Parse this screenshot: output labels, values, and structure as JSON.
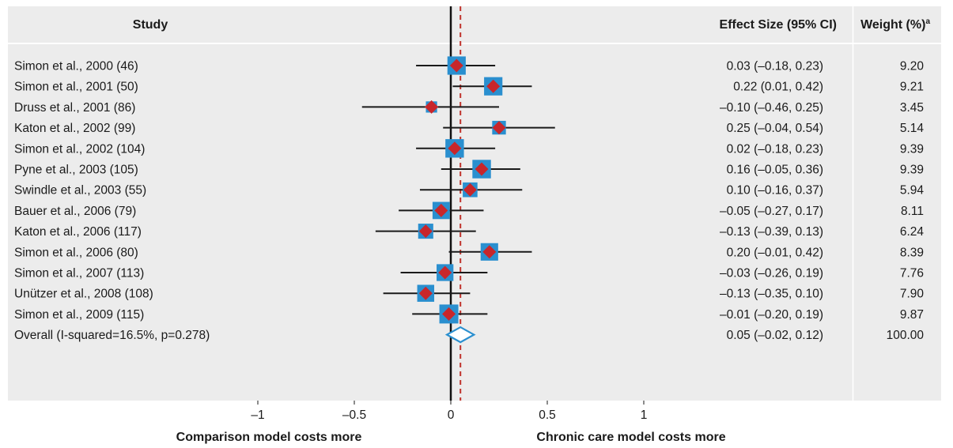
{
  "chart_data": {
    "type": "forest",
    "headers": {
      "study": "Study",
      "effect": "Effect Size (95% CI)",
      "weight": "Weight (%)",
      "weight_sup": "a"
    },
    "studies": [
      {
        "label": "Simon et al., 2000 (46)",
        "es": 0.03,
        "lo": -0.18,
        "hi": 0.23,
        "ci_text": "0.03 (–0.18, 0.23)",
        "weight": 9.2,
        "weight_text": "9.20"
      },
      {
        "label": "Simon et al., 2001 (50)",
        "es": 0.22,
        "lo": 0.01,
        "hi": 0.42,
        "ci_text": "0.22 (0.01, 0.42)",
        "weight": 9.21,
        "weight_text": "9.21"
      },
      {
        "label": "Druss et al., 2001 (86)",
        "es": -0.1,
        "lo": -0.46,
        "hi": 0.25,
        "ci_text": "–0.10 (–0.46, 0.25)",
        "weight": 3.45,
        "weight_text": "3.45"
      },
      {
        "label": "Katon et al., 2002 (99)",
        "es": 0.25,
        "lo": -0.04,
        "hi": 0.54,
        "ci_text": "0.25 (–0.04, 0.54)",
        "weight": 5.14,
        "weight_text": "5.14"
      },
      {
        "label": "Simon et al., 2002 (104)",
        "es": 0.02,
        "lo": -0.18,
        "hi": 0.23,
        "ci_text": "0.02 (–0.18, 0.23)",
        "weight": 9.39,
        "weight_text": "9.39"
      },
      {
        "label": "Pyne et al., 2003 (105)",
        "es": 0.16,
        "lo": -0.05,
        "hi": 0.36,
        "ci_text": "0.16 (–0.05, 0.36)",
        "weight": 9.39,
        "weight_text": "9.39"
      },
      {
        "label": "Swindle et al., 2003 (55)",
        "es": 0.1,
        "lo": -0.16,
        "hi": 0.37,
        "ci_text": "0.10 (–0.16, 0.37)",
        "weight": 5.94,
        "weight_text": "5.94"
      },
      {
        "label": "Bauer et al., 2006 (79)",
        "es": -0.05,
        "lo": -0.27,
        "hi": 0.17,
        "ci_text": "–0.05 (–0.27, 0.17)",
        "weight": 8.11,
        "weight_text": "8.11"
      },
      {
        "label": "Katon et al., 2006 (117)",
        "es": -0.13,
        "lo": -0.39,
        "hi": 0.13,
        "ci_text": "–0.13 (–0.39, 0.13)",
        "weight": 6.24,
        "weight_text": "6.24"
      },
      {
        "label": "Simon et al., 2006 (80)",
        "es": 0.2,
        "lo": -0.01,
        "hi": 0.42,
        "ci_text": "0.20 (–0.01, 0.42)",
        "weight": 8.39,
        "weight_text": "8.39"
      },
      {
        "label": "Simon et al., 2007 (113)",
        "es": -0.03,
        "lo": -0.26,
        "hi": 0.19,
        "ci_text": "–0.03 (–0.26, 0.19)",
        "weight": 7.76,
        "weight_text": "7.76"
      },
      {
        "label": "Unützer et al., 2008 (108)",
        "es": -0.13,
        "lo": -0.35,
        "hi": 0.1,
        "ci_text": "–0.13 (–0.35, 0.10)",
        "weight": 7.9,
        "weight_text": "7.90"
      },
      {
        "label": "Simon et al., 2009 (115)",
        "es": -0.01,
        "lo": -0.2,
        "hi": 0.19,
        "ci_text": "–0.01 (–0.20, 0.19)",
        "weight": 9.87,
        "weight_text": "9.87"
      }
    ],
    "overall": {
      "label": "Overall (I-squared=16.5%, p=0.278)",
      "es": 0.05,
      "lo": -0.02,
      "hi": 0.12,
      "ci_text": "0.05 (–0.02, 0.12)",
      "weight_text": "100.00"
    },
    "x_ticks": [
      -1,
      -0.5,
      0,
      0.5,
      1
    ],
    "x_tick_labels": [
      "–1",
      "–0.5",
      "0",
      "0.5",
      "1"
    ],
    "xlim": [
      -1.2,
      1.2
    ],
    "x_left_label": "Comparison model costs more",
    "x_right_label": "Chronic care model costs more",
    "null_line": 0,
    "overall_line": 0.05,
    "colors": {
      "panel": "#ececec",
      "box": "#2a8fcf",
      "point": "#c8262b",
      "overall_line": "#c0332c",
      "diamond": "#2a8fcf",
      "ci": "#1a1a1a"
    }
  }
}
